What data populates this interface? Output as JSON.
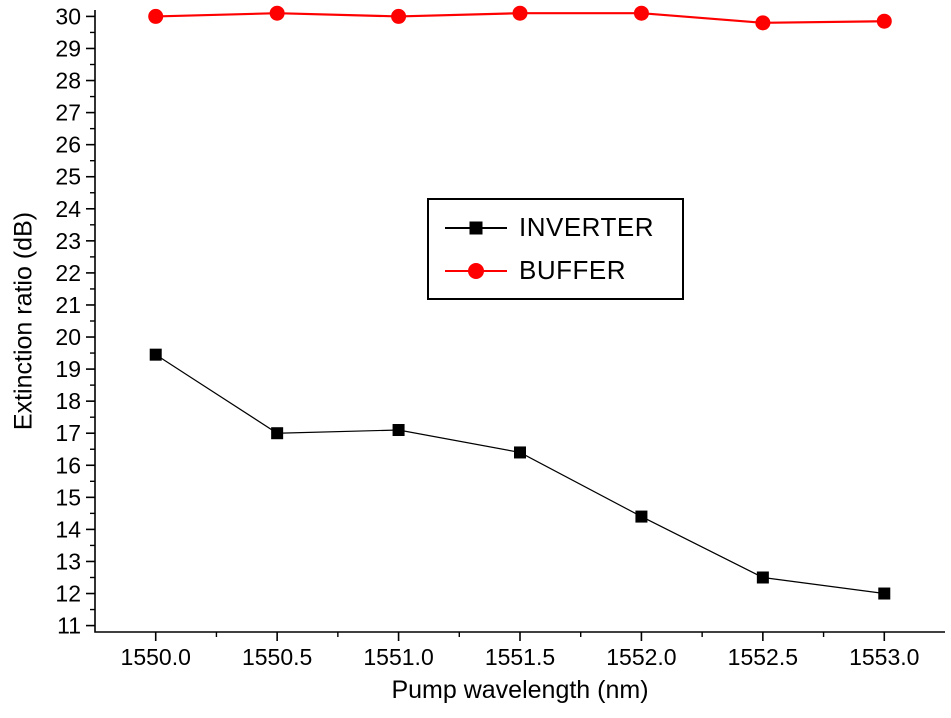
{
  "figure": {
    "background": "#ffffff",
    "axis_color": "#000000"
  },
  "chart_data": {
    "type": "line",
    "title": "",
    "xlabel": "Pump wavelength (nm)",
    "ylabel": "Extinction ratio (dB)",
    "x": [
      1550.0,
      1550.5,
      1551.0,
      1551.5,
      1552.0,
      1552.5,
      1553.0
    ],
    "series": [
      {
        "name": "INVERTER",
        "color": "#000000",
        "marker": "square",
        "line_width": 1.2,
        "values": [
          19.45,
          17.0,
          17.1,
          16.4,
          14.4,
          12.5,
          12.0
        ]
      },
      {
        "name": "BUFFER",
        "color": "#ff0000",
        "marker": "circle",
        "line_width": 2.2,
        "values": [
          30.0,
          30.1,
          30.0,
          30.1,
          30.1,
          29.8,
          29.85
        ]
      }
    ],
    "xlim": [
      1549.75,
      1553.25
    ],
    "ylim": [
      10.8,
      30.2
    ],
    "x_ticks": [
      1550.0,
      1550.5,
      1551.0,
      1551.5,
      1552.0,
      1552.5,
      1553.0
    ],
    "x_tick_labels": [
      "1550.0",
      "1550.5",
      "1551.0",
      "1551.5",
      "1552.0",
      "1552.5",
      "1553.0"
    ],
    "y_ticks": [
      11,
      12,
      13,
      14,
      15,
      16,
      17,
      18,
      19,
      20,
      21,
      22,
      23,
      24,
      25,
      26,
      27,
      28,
      29,
      30
    ],
    "y_tick_labels": [
      "11",
      "12",
      "13",
      "14",
      "15",
      "16",
      "17",
      "18",
      "19",
      "20",
      "21",
      "22",
      "23",
      "24",
      "25",
      "26",
      "27",
      "28",
      "29",
      "30"
    ],
    "x_minor_step": 0.25,
    "y_minor_step": 0.5,
    "grid": false,
    "legend": {
      "entries": [
        "INVERTER",
        "BUFFER"
      ],
      "position": "upper-center",
      "border_color": "#000000"
    }
  }
}
